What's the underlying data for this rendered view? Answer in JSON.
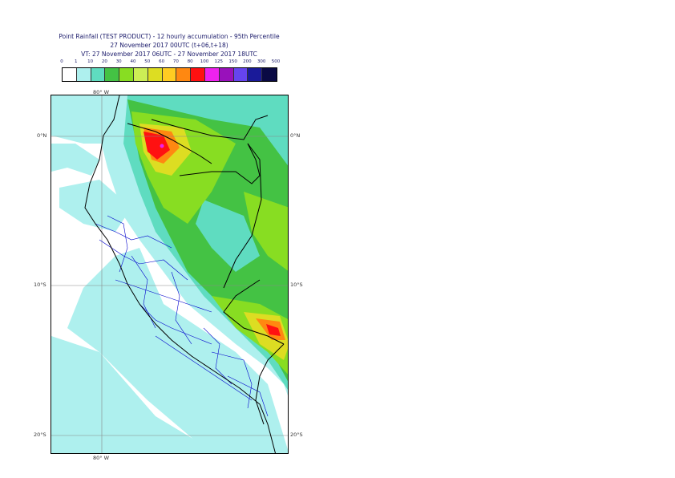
{
  "title": {
    "line1": "Point Rainfall (TEST PRODUCT) - 12 hourly accumulation - 95th Percentile",
    "line2": "27 November 2017 00UTC (t+06,t+18)",
    "line3": "VT: 27 November 2017 06UTC - 27 November 2017 18UTC"
  },
  "legend": {
    "labels": [
      "0",
      "1",
      "10",
      "20",
      "30",
      "40",
      "50",
      "60",
      "70",
      "80",
      "100",
      "125",
      "150",
      "200",
      "300",
      "500"
    ],
    "colors": [
      "#ffffff",
      "#aef0ee",
      "#5fdcc0",
      "#44c244",
      "#88dd22",
      "#ccee55",
      "#dddd22",
      "#ffcc22",
      "#ff8811",
      "#ff1111",
      "#ee22ee",
      "#9911bb",
      "#6644ee",
      "#1a1a99",
      "#0a0a44"
    ]
  },
  "map": {
    "lon_label_top": "80° W",
    "lon_label_bottom": "80° W",
    "lat_labels": {
      "equator": "0°N",
      "ten_south": "10°S",
      "twenty_south": "20°S"
    },
    "colors": {
      "ocean_light": "#aef0ee",
      "land_cyan": "#5fdcc0",
      "green": "#44c244",
      "lime": "#88dd22",
      "yellow": "#dddd22",
      "orange": "#ff8811",
      "red": "#ff1111",
      "magenta": "#ee22ee",
      "coast": "#000000",
      "borders": "#0000cc",
      "grid": "#888888"
    }
  }
}
